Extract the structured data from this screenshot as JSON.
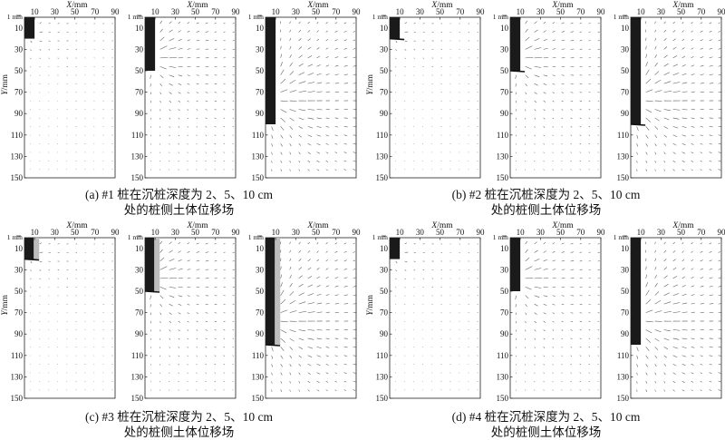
{
  "figure": {
    "x_axis_label": "X/mm",
    "y_axis_label": "Y/mm",
    "x_ticks": [
      "10",
      "30",
      "50",
      "70",
      "90"
    ],
    "y_ticks": [
      "10",
      "30",
      "50",
      "70",
      "90",
      "110",
      "130",
      "150"
    ],
    "origin_label": "1 mm",
    "x_range_mm": [
      0,
      90
    ],
    "y_range_mm": [
      0,
      150
    ]
  },
  "groups": [
    {
      "id": "a",
      "caption_line1": "(a) #1 桩在沉桩深度为 2、5、10 cm",
      "caption_line2": "处的桩侧土体位移场",
      "panels": [
        {
          "pile_depth_mm": 20,
          "pile_width_mm": 10,
          "tip_mark": false,
          "light_band": false
        },
        {
          "pile_depth_mm": 50,
          "pile_width_mm": 10,
          "tip_mark": false,
          "light_band": false
        },
        {
          "pile_depth_mm": 100,
          "pile_width_mm": 10,
          "tip_mark": false,
          "light_band": false
        }
      ]
    },
    {
      "id": "b",
      "caption_line1": "(b) #2 桩在沉桩深度为 2、5、10 cm",
      "caption_line2": "处的桩侧土体位移场",
      "panels": [
        {
          "pile_depth_mm": 20,
          "pile_width_mm": 10,
          "tip_mark": true,
          "light_band": false
        },
        {
          "pile_depth_mm": 50,
          "pile_width_mm": 10,
          "tip_mark": true,
          "light_band": false
        },
        {
          "pile_depth_mm": 100,
          "pile_width_mm": 10,
          "tip_mark": true,
          "light_band": false
        }
      ]
    },
    {
      "id": "c",
      "caption_line1": "(c) #3 桩在沉桩深度为 2、5、10 cm",
      "caption_line2": "处的桩侧土体位移场",
      "panels": [
        {
          "pile_depth_mm": 20,
          "pile_width_mm": 10,
          "tip_mark": true,
          "light_band": true
        },
        {
          "pile_depth_mm": 50,
          "pile_width_mm": 10,
          "tip_mark": true,
          "light_band": true
        },
        {
          "pile_depth_mm": 100,
          "pile_width_mm": 10,
          "tip_mark": true,
          "light_band": true
        }
      ]
    },
    {
      "id": "d",
      "caption_line1": "(d) #4 桩在沉桩深度为 2、5、10 cm",
      "caption_line2": "处的桩侧土体位移场",
      "panels": [
        {
          "pile_depth_mm": 20,
          "pile_width_mm": 10,
          "tip_mark": false,
          "light_band": false
        },
        {
          "pile_depth_mm": 50,
          "pile_width_mm": 10,
          "tip_mark": false,
          "light_band": false
        },
        {
          "pile_depth_mm": 100,
          "pile_width_mm": 10,
          "tip_mark": false,
          "light_band": false
        }
      ]
    }
  ]
}
